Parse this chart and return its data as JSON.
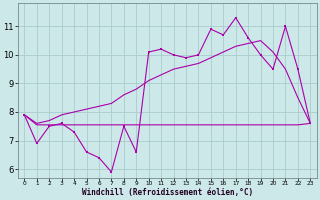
{
  "xlabel": "Windchill (Refroidissement éolien,°C)",
  "x": [
    0,
    1,
    2,
    3,
    4,
    5,
    6,
    7,
    8,
    9,
    10,
    11,
    12,
    13,
    14,
    15,
    16,
    17,
    18,
    19,
    20,
    21,
    22,
    23
  ],
  "line_data": [
    7.9,
    6.9,
    7.5,
    7.6,
    7.3,
    6.6,
    6.4,
    5.9,
    7.5,
    6.6,
    10.1,
    10.2,
    10.0,
    9.9,
    10.0,
    10.9,
    10.7,
    11.3,
    10.6,
    10.0,
    9.5,
    11.0,
    9.5,
    7.6
  ],
  "line_upper": [
    7.9,
    7.6,
    7.7,
    7.9,
    8.0,
    8.1,
    8.2,
    8.3,
    8.6,
    8.8,
    9.1,
    9.3,
    9.5,
    9.6,
    9.7,
    9.9,
    10.1,
    10.3,
    10.4,
    10.5,
    10.1,
    9.5,
    8.5,
    7.6
  ],
  "line_lower": [
    7.9,
    7.55,
    7.55,
    7.55,
    7.55,
    7.55,
    7.55,
    7.55,
    7.55,
    7.55,
    7.55,
    7.55,
    7.55,
    7.55,
    7.55,
    7.55,
    7.55,
    7.55,
    7.55,
    7.55,
    7.55,
    7.55,
    7.55,
    7.6
  ],
  "color": "#aa00aa",
  "bg_color": "#cce8e8",
  "grid_color": "#aacccc",
  "ylim": [
    5.7,
    11.8
  ],
  "xlim": [
    -0.5,
    23.5
  ],
  "yticks": [
    6,
    7,
    8,
    9,
    10,
    11
  ]
}
